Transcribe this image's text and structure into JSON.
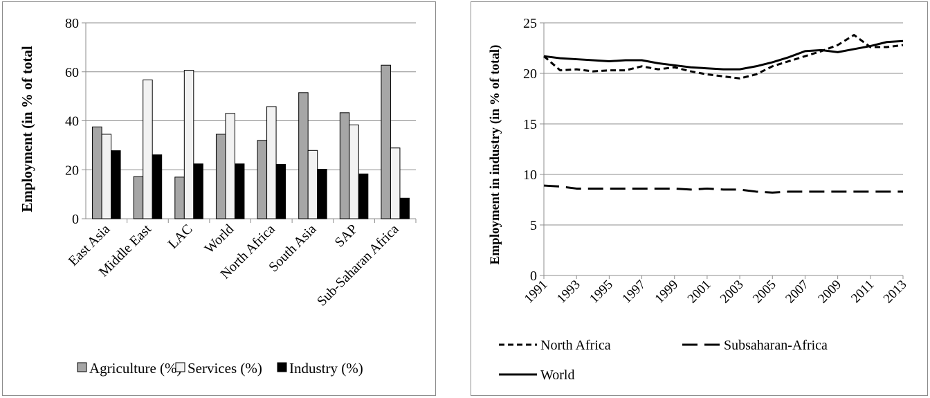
{
  "chart_data": [
    {
      "type": "bar",
      "ylabel": "Employment (in % of total",
      "xlabel": "",
      "ylim": [
        0,
        80
      ],
      "yticks": [
        0,
        20,
        40,
        60,
        80
      ],
      "grid": true,
      "legend_position": "bottom",
      "categories": [
        "East Asia",
        "Middle East",
        "LAC",
        "World",
        "North Africa",
        "South Asia",
        "SAP",
        "Sub-Saharan Africa"
      ],
      "series": [
        {
          "name": "Agriculture (%)",
          "color": "#a6a6a6",
          "values": [
            37.5,
            17.2,
            17.0,
            34.5,
            32.0,
            51.5,
            43.3,
            62.7
          ]
        },
        {
          "name": "Services (%)",
          "color": "#f2f2f2",
          "values": [
            34.5,
            56.7,
            60.6,
            43.0,
            45.8,
            27.9,
            38.3,
            28.9
          ]
        },
        {
          "name": "Industry (%)",
          "color": "#000000",
          "values": [
            27.8,
            26.1,
            22.4,
            22.4,
            22.2,
            20.2,
            18.3,
            8.4
          ]
        }
      ]
    },
    {
      "type": "line",
      "ylabel": "Employment in industry (in % of total)",
      "xlabel": "",
      "ylim": [
        0,
        25
      ],
      "yticks": [
        0,
        5,
        10,
        15,
        20,
        25
      ],
      "grid": true,
      "legend_position": "bottom",
      "x": [
        1991,
        1992,
        1993,
        1994,
        1995,
        1996,
        1997,
        1998,
        1999,
        2000,
        2001,
        2002,
        2003,
        2004,
        2005,
        2006,
        2007,
        2008,
        2009,
        2010,
        2011,
        2012,
        2013
      ],
      "xticks": [
        "1991",
        "1993",
        "1995",
        "1997",
        "1999",
        "2001",
        "2003",
        "2005",
        "2007",
        "2009",
        "2011",
        "2013"
      ],
      "series": [
        {
          "name": "North Africa",
          "dash": "short",
          "values": [
            21.7,
            20.3,
            20.4,
            20.2,
            20.3,
            20.3,
            20.7,
            20.4,
            20.6,
            20.2,
            19.9,
            19.7,
            19.5,
            19.9,
            20.7,
            21.2,
            21.7,
            22.2,
            22.8,
            23.8,
            22.6,
            22.6,
            22.8
          ]
        },
        {
          "name": "Subsaharan-Africa",
          "dash": "long",
          "values": [
            8.9,
            8.8,
            8.6,
            8.6,
            8.6,
            8.6,
            8.6,
            8.6,
            8.6,
            8.5,
            8.6,
            8.5,
            8.5,
            8.3,
            8.2,
            8.3,
            8.3,
            8.3,
            8.3,
            8.3,
            8.3,
            8.3,
            8.3
          ]
        },
        {
          "name": "World",
          "dash": "solid",
          "values": [
            21.7,
            21.5,
            21.4,
            21.3,
            21.2,
            21.3,
            21.3,
            21.0,
            20.8,
            20.6,
            20.5,
            20.4,
            20.4,
            20.7,
            21.1,
            21.6,
            22.2,
            22.3,
            22.1,
            22.4,
            22.7,
            23.1,
            23.2
          ]
        }
      ]
    }
  ]
}
